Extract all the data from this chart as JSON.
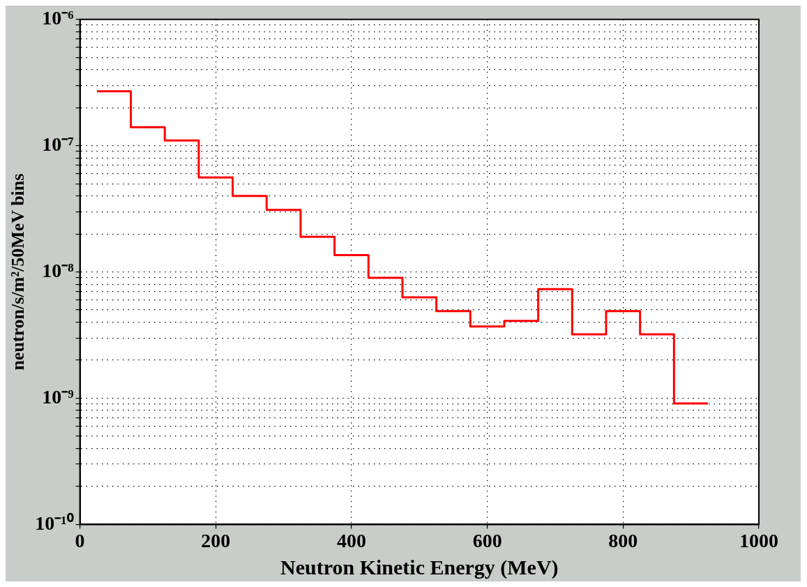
{
  "chart_data": {
    "type": "histogram",
    "xlabel": "Neutron Kinetic Energy (MeV)",
    "ylabel": "neutron/s/m²/50MeV bins",
    "bins": [
      25,
      75,
      125,
      175,
      225,
      275,
      325,
      375,
      425,
      475,
      525,
      575,
      625,
      675,
      725,
      775,
      825,
      875,
      925
    ],
    "values": [
      2.7e-07,
      1.4e-07,
      1.1e-07,
      5.6e-08,
      4e-08,
      3.1e-08,
      1.9e-08,
      1.36e-08,
      9e-09,
      6.3e-09,
      4.9e-09,
      3.7e-09,
      4.1e-09,
      7.3e-09,
      3.2e-09,
      4.9e-09,
      3.2e-09,
      9.1e-10
    ],
    "color": "#ff0000",
    "xlim": [
      0,
      1000
    ],
    "xticks": [
      0,
      200,
      400,
      600,
      800,
      1000
    ],
    "ylim": [
      1e-10,
      1e-06
    ],
    "yticks": [
      {
        "value": 1e-10,
        "label": "10⁻¹⁰"
      },
      {
        "value": 2e-10,
        "label": null
      },
      {
        "value": 3e-10,
        "label": null
      },
      {
        "value": 4e-10,
        "label": null
      },
      {
        "value": 5e-10,
        "label": null
      },
      {
        "value": 6e-10,
        "label": null
      },
      {
        "value": 7e-10,
        "label": null
      },
      {
        "value": 8e-10,
        "label": null
      },
      {
        "value": 9e-10,
        "label": null
      },
      {
        "value": 1e-09,
        "label": "10⁻⁹"
      },
      {
        "value": 2e-09,
        "label": null
      },
      {
        "value": 3e-09,
        "label": null
      },
      {
        "value": 4e-09,
        "label": null
      },
      {
        "value": 5e-09,
        "label": null
      },
      {
        "value": 6e-09,
        "label": null
      },
      {
        "value": 7e-09,
        "label": null
      },
      {
        "value": 8e-09,
        "label": null
      },
      {
        "value": 9e-09,
        "label": null
      },
      {
        "value": 1e-08,
        "label": "10⁻⁸"
      },
      {
        "value": 2e-08,
        "label": null
      },
      {
        "value": 3e-08,
        "label": null
      },
      {
        "value": 4e-08,
        "label": null
      },
      {
        "value": 5e-08,
        "label": null
      },
      {
        "value": 6e-08,
        "label": null
      },
      {
        "value": 7e-08,
        "label": null
      },
      {
        "value": 8e-08,
        "label": null
      },
      {
        "value": 9e-08,
        "label": null
      },
      {
        "value": 1e-07,
        "label": "10⁻⁷"
      },
      {
        "value": 2e-07,
        "label": null
      },
      {
        "value": 3e-07,
        "label": null
      },
      {
        "value": 4e-07,
        "label": null
      },
      {
        "value": 5e-07,
        "label": null
      },
      {
        "value": 6e-07,
        "label": null
      },
      {
        "value": 7e-07,
        "label": null
      },
      {
        "value": 8e-07,
        "label": null
      },
      {
        "value": 9e-07,
        "label": null
      },
      {
        "value": 1e-06,
        "label": "10⁻⁶"
      }
    ],
    "log": "y",
    "grid": true,
    "legend": false,
    "line_style": "solid"
  }
}
